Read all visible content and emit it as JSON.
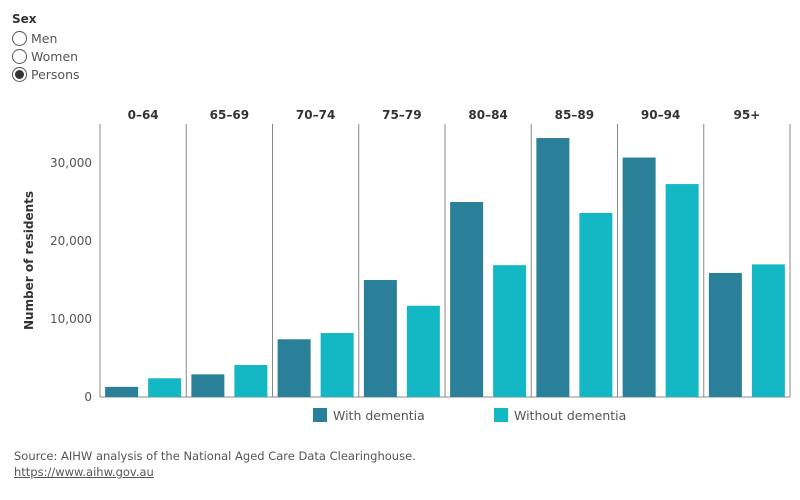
{
  "filter": {
    "title": "Sex",
    "options": [
      {
        "label": "Men",
        "selected": false
      },
      {
        "label": "Women",
        "selected": false
      },
      {
        "label": "Persons",
        "selected": true
      }
    ]
  },
  "chart_data": {
    "type": "bar",
    "ylabel": "Number of residents",
    "ylim": [
      0,
      35000
    ],
    "yticks": [
      0,
      10000,
      20000,
      30000
    ],
    "ytick_labels": [
      "0",
      "10,000",
      "20,000",
      "30,000"
    ],
    "categories": [
      "0–64",
      "65–69",
      "70–74",
      "75–79",
      "80–84",
      "85–89",
      "90–94",
      "95+"
    ],
    "series": [
      {
        "name": "With dementia",
        "color": "#2A7F99",
        "values": [
          1300,
          2900,
          7400,
          15000,
          25000,
          33200,
          30700,
          15900
        ]
      },
      {
        "name": "Without dementia",
        "color": "#14B8C4",
        "values": [
          2400,
          4100,
          8200,
          11700,
          16900,
          23600,
          27300,
          17000
        ]
      }
    ],
    "legend_position": "bottom"
  },
  "footer": {
    "source": "Source: AIHW analysis of the National Aged Care Data Clearinghouse.",
    "link": "https://www.aihw.gov.au"
  }
}
